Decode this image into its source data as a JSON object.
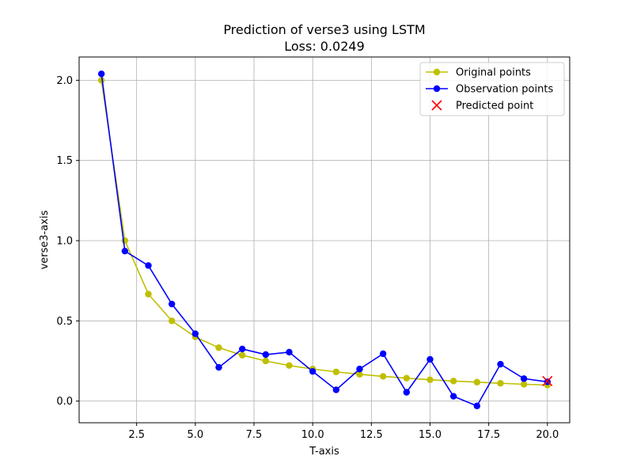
{
  "chart_data": {
    "type": "line",
    "title": "Prediction of verse3 using LSTM",
    "subtitle": "Loss: 0.0249",
    "xlabel": "T-axis",
    "ylabel": "verse3-axis",
    "xlim": [
      0.05,
      20.95
    ],
    "ylim": [
      -0.135,
      2.145
    ],
    "xticks": [
      2.5,
      5.0,
      7.5,
      10.0,
      12.5,
      15.0,
      17.5,
      20.0
    ],
    "xtick_labels": [
      "2.5",
      "5.0",
      "7.5",
      "10.0",
      "12.5",
      "15.0",
      "17.5",
      "20.0"
    ],
    "yticks": [
      0.0,
      0.5,
      1.0,
      1.5,
      2.0
    ],
    "ytick_labels": [
      "0.0",
      "0.5",
      "1.0",
      "1.5",
      "2.0"
    ],
    "grid": true,
    "legend_position": "top-right",
    "series": [
      {
        "name": "Original points",
        "color": "#bfbf00",
        "marker": "circle",
        "x": [
          1,
          2,
          3,
          4,
          5,
          6,
          7,
          8,
          9,
          10,
          11,
          12,
          13,
          14,
          15,
          16,
          17,
          18,
          19,
          20
        ],
        "y": [
          2.0,
          1.0,
          0.667,
          0.5,
          0.4,
          0.333,
          0.286,
          0.25,
          0.222,
          0.2,
          0.182,
          0.167,
          0.154,
          0.143,
          0.133,
          0.125,
          0.118,
          0.111,
          0.105,
          0.1
        ]
      },
      {
        "name": "Observation points",
        "color": "#0000ff",
        "marker": "circle",
        "x": [
          1,
          2,
          3,
          4,
          5,
          6,
          7,
          8,
          9,
          10,
          11,
          12,
          13,
          14,
          15,
          16,
          17,
          18,
          19,
          20
        ],
        "y": [
          2.04,
          0.935,
          0.845,
          0.605,
          0.42,
          0.21,
          0.325,
          0.29,
          0.305,
          0.185,
          0.07,
          0.2,
          0.295,
          0.055,
          0.26,
          0.03,
          -0.03,
          0.23,
          0.14,
          0.12
        ]
      },
      {
        "name": "Predicted point",
        "color": "#ff0000",
        "marker": "x",
        "x": [
          20
        ],
        "y": [
          0.125
        ]
      }
    ]
  }
}
